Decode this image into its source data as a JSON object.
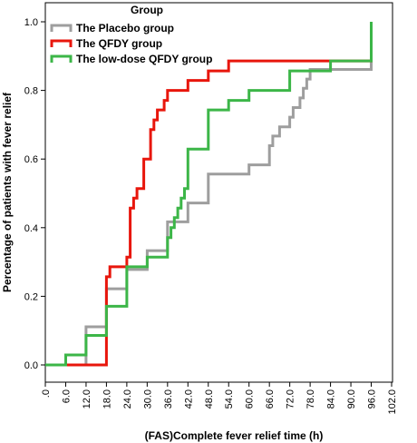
{
  "chart_data": {
    "type": "line",
    "step": true,
    "xlabel": "(FAS)Complete fever relief time (h)",
    "ylabel": "Percentage of patients with  fever relief",
    "xlim": [
      0,
      102
    ],
    "ylim": [
      0,
      1.0
    ],
    "x_ticks": [
      0,
      6,
      12,
      18,
      24,
      30,
      36,
      42,
      48,
      54,
      60,
      66,
      72,
      78,
      84,
      90,
      96,
      102
    ],
    "x_tick_labels": [
      ".0",
      "6.0",
      "12.0",
      "18.0",
      "24.0",
      "30.0",
      "36.0",
      "42.0",
      "48.0",
      "54.0",
      "60.0",
      "66.0",
      "72.0",
      "78.0",
      "84.0",
      "90.0",
      "96.0",
      "102.0"
    ],
    "y_ticks": [
      0,
      0.2,
      0.4,
      0.6,
      0.8,
      1.0
    ],
    "y_tick_labels": [
      "0.0",
      "0.2",
      "0.4",
      "0.6",
      "0.8",
      "1.0"
    ],
    "legend": {
      "title": "Group",
      "position": "top-left"
    },
    "series": [
      {
        "name": "The Placebo group",
        "color": "#9e9e9e",
        "points": [
          [
            0,
            0
          ],
          [
            6,
            0
          ],
          [
            12,
            0.111
          ],
          [
            18,
            0.222
          ],
          [
            24,
            0.278
          ],
          [
            30,
            0.333
          ],
          [
            36,
            0.417
          ],
          [
            42,
            0.472
          ],
          [
            48,
            0.556
          ],
          [
            60,
            0.583
          ],
          [
            66,
            0.639
          ],
          [
            67,
            0.667
          ],
          [
            69,
            0.694
          ],
          [
            72,
            0.722
          ],
          [
            73,
            0.75
          ],
          [
            75,
            0.778
          ],
          [
            76,
            0.806
          ],
          [
            77,
            0.833
          ],
          [
            78,
            0.861
          ],
          [
            96,
            0.861
          ],
          [
            96,
            1.0
          ]
        ]
      },
      {
        "name": "The QFDY group",
        "color": "#e8160c",
        "points": [
          [
            0,
            0
          ],
          [
            12,
            0
          ],
          [
            18,
            0.257
          ],
          [
            19,
            0.286
          ],
          [
            24,
            0.314
          ],
          [
            25,
            0.457
          ],
          [
            26,
            0.486
          ],
          [
            27,
            0.514
          ],
          [
            29,
            0.6
          ],
          [
            31,
            0.686
          ],
          [
            32,
            0.714
          ],
          [
            33,
            0.743
          ],
          [
            35,
            0.771
          ],
          [
            36,
            0.8
          ],
          [
            42,
            0.829
          ],
          [
            48,
            0.857
          ],
          [
            54,
            0.886
          ],
          [
            78,
            0.886
          ],
          [
            96,
            0.914
          ],
          [
            96,
            1.0
          ]
        ]
      },
      {
        "name": "The low-dose QFDY group",
        "color": "#3cb648",
        "points": [
          [
            0,
            0
          ],
          [
            6,
            0.029
          ],
          [
            12,
            0.086
          ],
          [
            18,
            0.171
          ],
          [
            24,
            0.286
          ],
          [
            30,
            0.314
          ],
          [
            36,
            0.371
          ],
          [
            37,
            0.4
          ],
          [
            38,
            0.429
          ],
          [
            39,
            0.457
          ],
          [
            40,
            0.486
          ],
          [
            41,
            0.514
          ],
          [
            42,
            0.629
          ],
          [
            48,
            0.743
          ],
          [
            54,
            0.771
          ],
          [
            60,
            0.8
          ],
          [
            72,
            0.857
          ],
          [
            84,
            0.886
          ],
          [
            96,
            0.886
          ],
          [
            96,
            1.0
          ]
        ]
      }
    ]
  }
}
